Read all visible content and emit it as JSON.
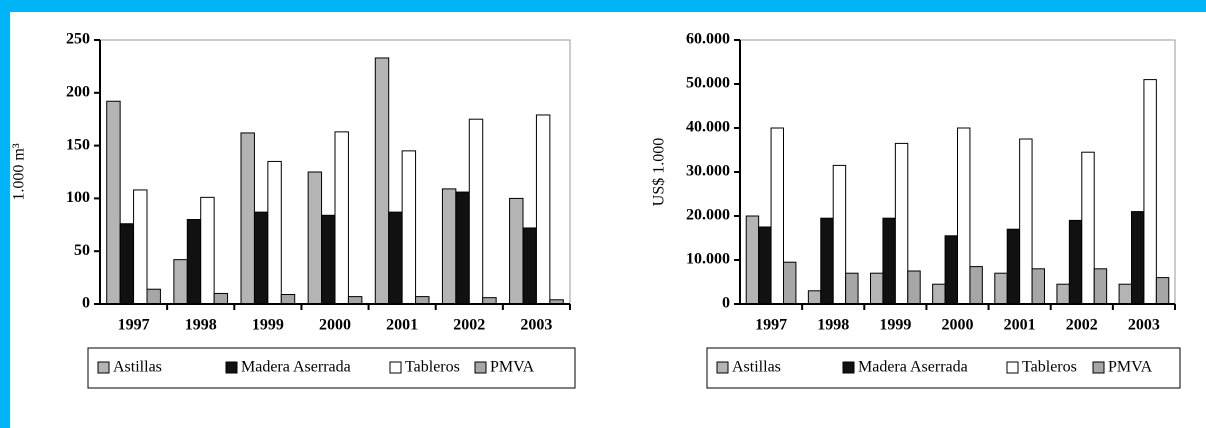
{
  "chart_data": [
    {
      "type": "bar",
      "y_label": "1.000 m³",
      "categories": [
        "1997",
        "1998",
        "1999",
        "2000",
        "2001",
        "2002",
        "2003"
      ],
      "series": [
        {
          "name": "Astillas",
          "color": "#b4b4b4",
          "values": [
            192,
            42,
            162,
            125,
            233,
            109,
            100
          ]
        },
        {
          "name": "Madera Aserrada",
          "color": "#111111",
          "values": [
            76,
            80,
            87,
            84,
            87,
            106,
            72
          ]
        },
        {
          "name": "Tableros",
          "color": "#ffffff",
          "values": [
            108,
            101,
            135,
            163,
            145,
            175,
            179
          ]
        },
        {
          "name": "PMVA",
          "color": "#a6a6a6",
          "values": [
            14,
            10,
            9,
            7,
            7,
            6,
            4
          ]
        }
      ],
      "ylim": [
        0,
        250
      ],
      "yticks": [
        0,
        50,
        100,
        150,
        200,
        250
      ],
      "legend": "bottom"
    },
    {
      "type": "bar",
      "y_label": "US$ 1.000",
      "categories": [
        "1997",
        "1998",
        "1999",
        "2000",
        "2001",
        "2002",
        "2003"
      ],
      "series": [
        {
          "name": "Astillas",
          "color": "#b4b4b4",
          "values": [
            20000,
            3000,
            7000,
            4500,
            7000,
            4500,
            4500
          ]
        },
        {
          "name": "Madera Aserrada",
          "color": "#111111",
          "values": [
            17500,
            19500,
            19500,
            15500,
            17000,
            19000,
            21000
          ]
        },
        {
          "name": "Tableros",
          "color": "#ffffff",
          "values": [
            40000,
            31500,
            36500,
            40000,
            37500,
            34500,
            51000
          ]
        },
        {
          "name": "PMVA",
          "color": "#a6a6a6",
          "values": [
            9500,
            7000,
            7500,
            8500,
            8000,
            8000,
            6000
          ]
        }
      ],
      "ylim": [
        0,
        60000
      ],
      "yticks": [
        0,
        {
          "value": 10000,
          "label": "10.000"
        },
        {
          "value": 20000,
          "label": "20.000"
        },
        {
          "value": 30000,
          "label": "30.000"
        },
        {
          "value": 40000,
          "label": "40.000"
        },
        {
          "value": 50000,
          "label": "50.000"
        },
        {
          "value": 60000,
          "label": "60.000"
        }
      ],
      "legend": "bottom"
    }
  ]
}
